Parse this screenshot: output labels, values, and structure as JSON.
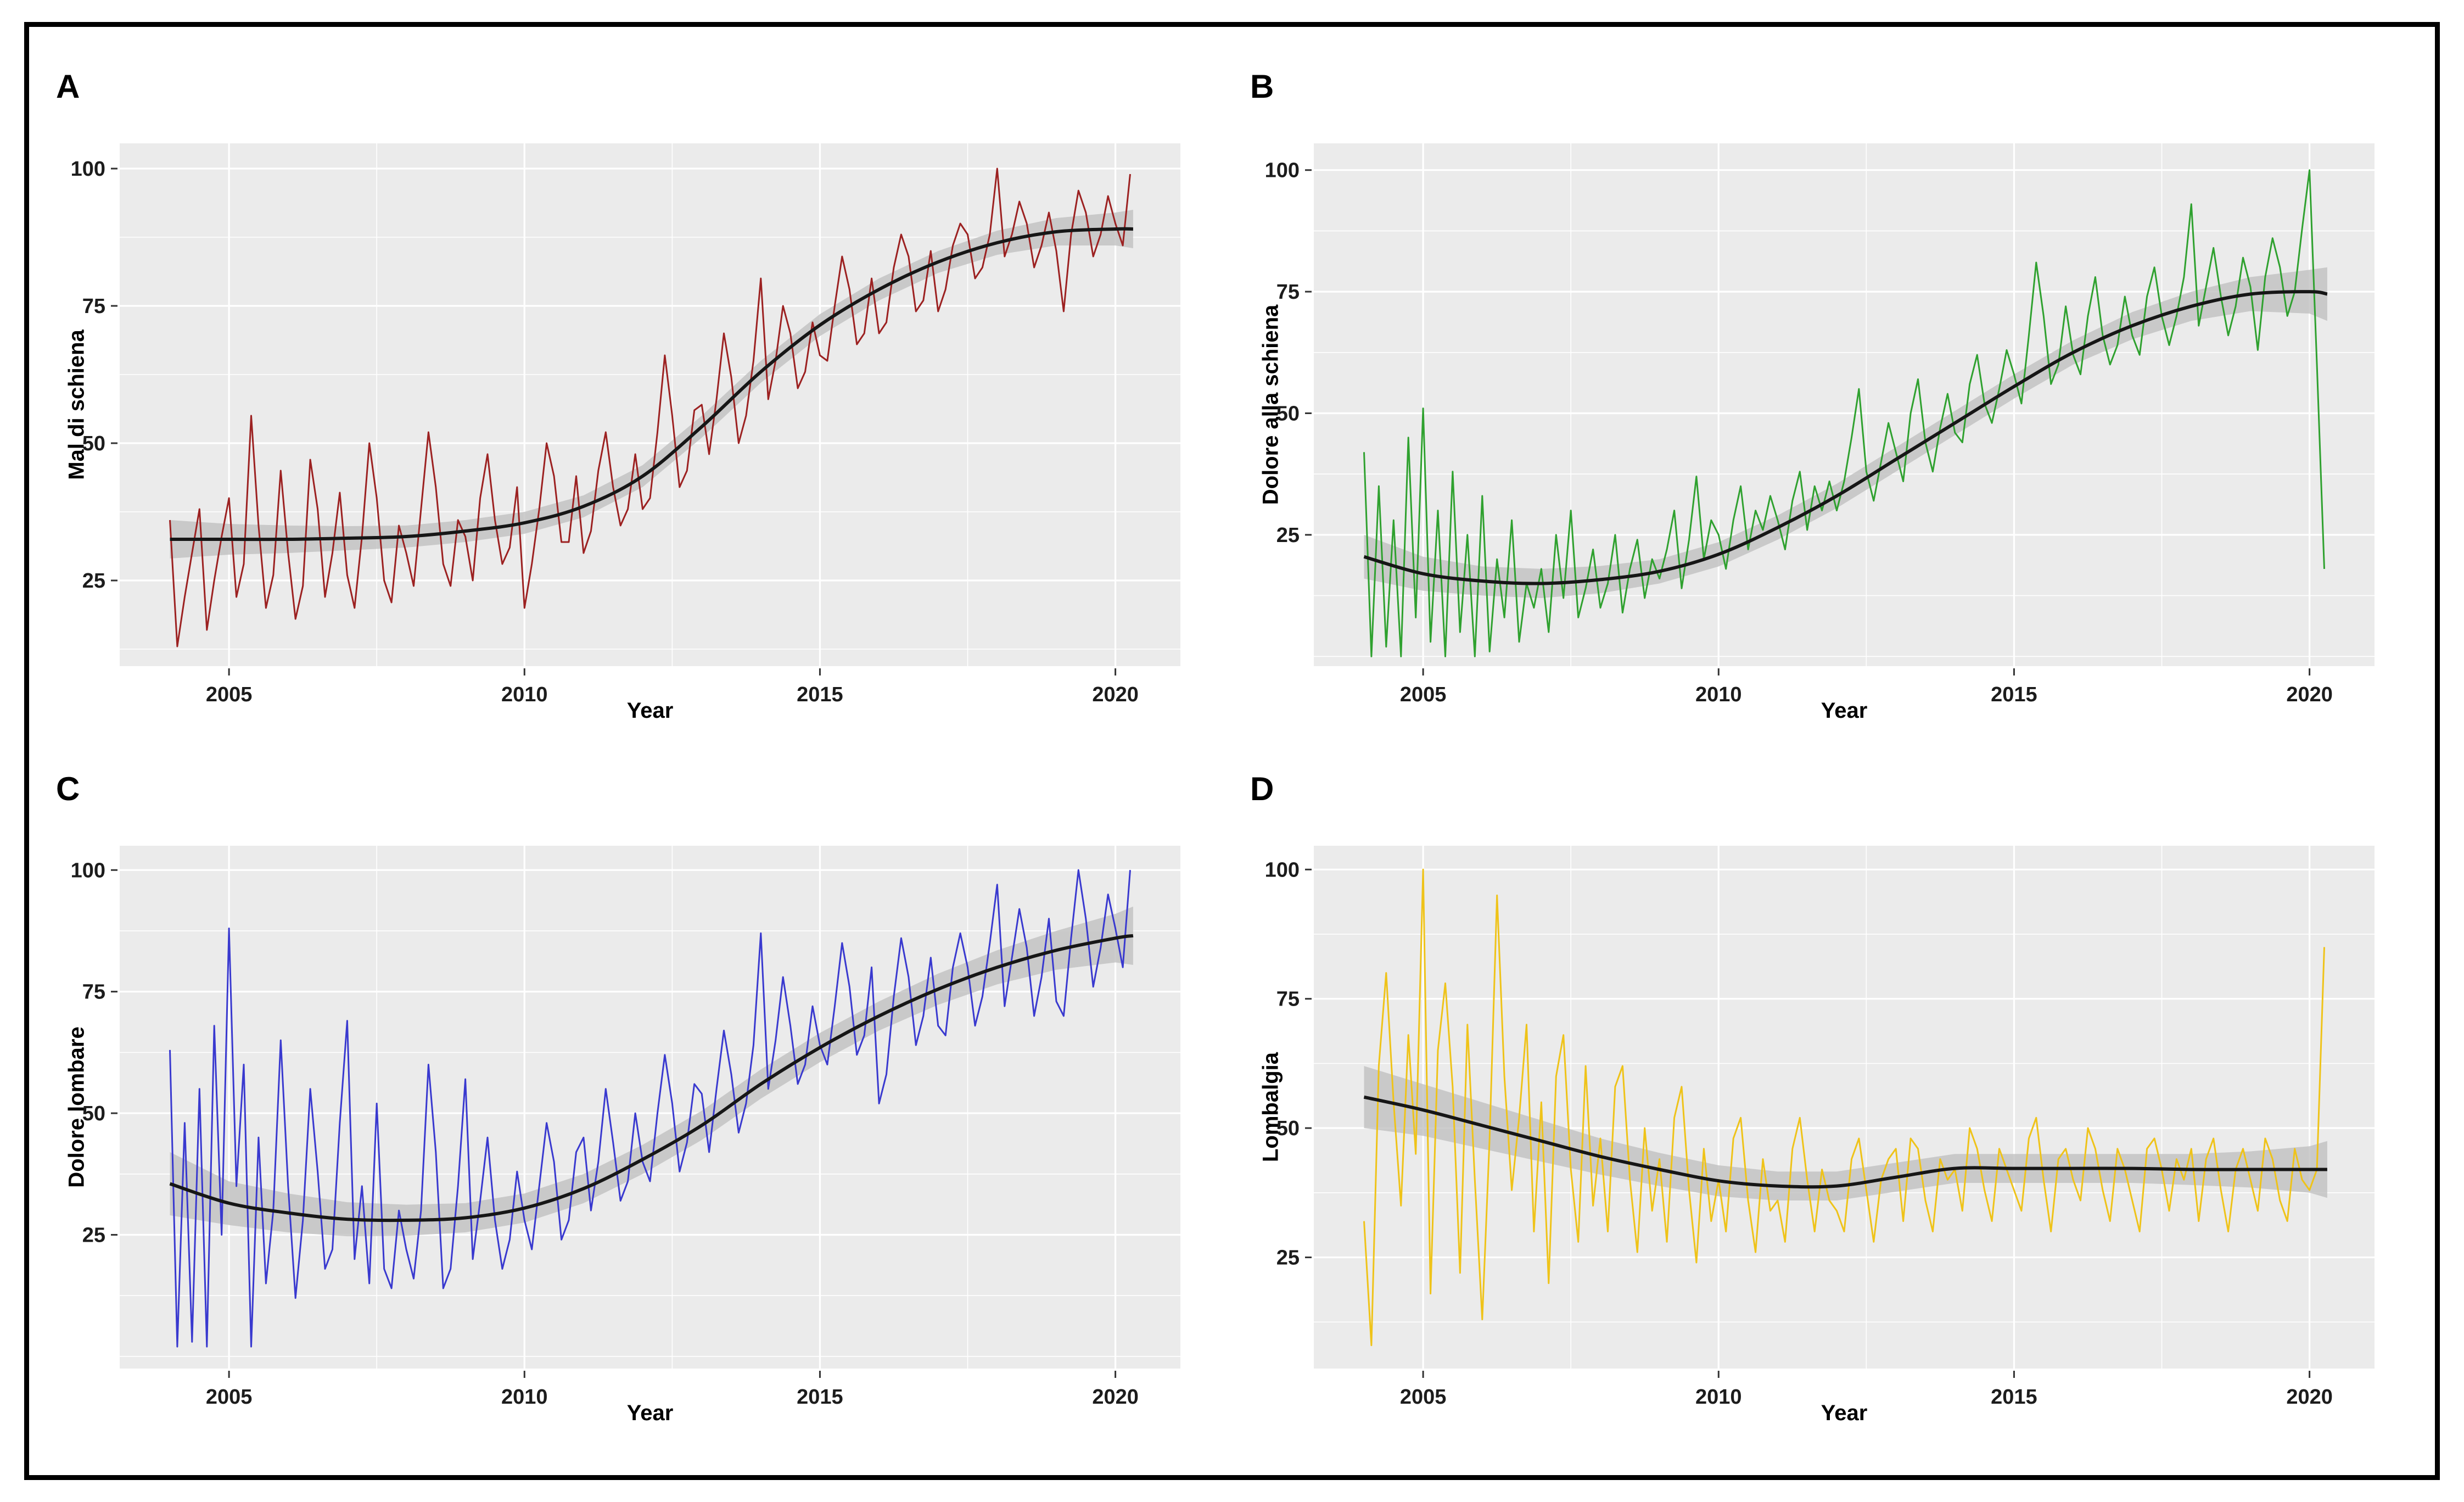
{
  "figure": {
    "frame_color": "#000000",
    "panel_background": "#EBEBEB",
    "grid_color": "#FFFFFF",
    "trend_color": "#161616",
    "ci_color": "#C0C0C0"
  },
  "chart_data": [
    {
      "type": "line",
      "panel_letter": "A",
      "ylabel": "Mal di schiena",
      "xlabel": "Year",
      "line_color": "#9C2121",
      "trend_color": "#161616",
      "ci_color": "#C0C0C0",
      "bg": "#EBEBEB",
      "grid": "#FFFFFF",
      "x_ticks": [
        2005,
        2010,
        2015,
        2020
      ],
      "y_ticks": [
        100,
        75,
        50,
        25
      ],
      "x_minor": [
        2007.5,
        2012.5,
        2017.5
      ],
      "y_minor": [
        0,
        12.5,
        37.5,
        62.5,
        87.5
      ],
      "xlim": [
        2003.15,
        2021.1
      ],
      "ylim": [
        9.4,
        104.6
      ],
      "x_start": 2004.0,
      "x_step": 0.125,
      "values": [
        36,
        13,
        22,
        30,
        38,
        16,
        25,
        33,
        40,
        22,
        28,
        55,
        35,
        20,
        26,
        45,
        30,
        18,
        24,
        47,
        38,
        22,
        30,
        41,
        26,
        20,
        33,
        50,
        40,
        25,
        21,
        35,
        30,
        24,
        38,
        52,
        42,
        28,
        24,
        36,
        33,
        25,
        40,
        48,
        36,
        28,
        31,
        42,
        20,
        28,
        38,
        50,
        44,
        32,
        32,
        44,
        30,
        34,
        45,
        52,
        42,
        35,
        38,
        48,
        38,
        40,
        52,
        66,
        55,
        42,
        45,
        56,
        57,
        48,
        58,
        70,
        62,
        50,
        55,
        65,
        80,
        58,
        65,
        75,
        70,
        60,
        63,
        72,
        66,
        65,
        75,
        84,
        78,
        68,
        70,
        80,
        70,
        72,
        82,
        88,
        84,
        74,
        76,
        85,
        74,
        78,
        86,
        90,
        88,
        80,
        82,
        88,
        100,
        84,
        88,
        94,
        90,
        82,
        86,
        92,
        85,
        74,
        88,
        96,
        92,
        84,
        88,
        95,
        90,
        86,
        99
      ],
      "trend_x": [
        2004,
        2005,
        2006,
        2007,
        2008,
        2009,
        2010,
        2011,
        2012,
        2013,
        2014,
        2015,
        2016,
        2017,
        2018,
        2019,
        2020,
        2020.3
      ],
      "trend": [
        32.5,
        32.5,
        32.5,
        32.7,
        33,
        34,
        35.5,
        38.5,
        44,
        53,
        63,
        71.5,
        78,
        83,
        86.5,
        88.5,
        89,
        89
      ],
      "ci": [
        3.5,
        2.8,
        2.5,
        2.2,
        2,
        2,
        2,
        2,
        2,
        2,
        2,
        2,
        2,
        2,
        2.2,
        2.5,
        3,
        3.5
      ]
    },
    {
      "type": "line",
      "panel_letter": "B",
      "ylabel": "Dolore alla schiena",
      "xlabel": "Year",
      "line_color": "#2FA12F",
      "trend_color": "#161616",
      "ci_color": "#C0C0C0",
      "bg": "#EBEBEB",
      "grid": "#FFFFFF",
      "x_ticks": [
        2005,
        2010,
        2015,
        2020
      ],
      "y_ticks": [
        100,
        75,
        50,
        25
      ],
      "x_minor": [
        2007.5,
        2012.5,
        2017.5
      ],
      "y_minor": [
        0,
        12.5,
        37.5,
        62.5,
        87.5
      ],
      "xlim": [
        2003.15,
        2021.1
      ],
      "ylim": [
        -2,
        105.5
      ],
      "x_start": 2004.0,
      "x_step": 0.125,
      "values": [
        42,
        0,
        35,
        2,
        28,
        0,
        45,
        8,
        51,
        3,
        30,
        0,
        38,
        5,
        25,
        0,
        33,
        1,
        20,
        8,
        28,
        3,
        15,
        10,
        18,
        5,
        25,
        12,
        30,
        8,
        14,
        22,
        10,
        15,
        25,
        9,
        18,
        24,
        12,
        20,
        16,
        22,
        30,
        14,
        24,
        37,
        20,
        28,
        25,
        18,
        28,
        35,
        22,
        30,
        26,
        33,
        28,
        22,
        32,
        38,
        26,
        35,
        30,
        36,
        30,
        36,
        45,
        55,
        38,
        32,
        40,
        48,
        42,
        36,
        50,
        57,
        44,
        38,
        47,
        54,
        46,
        44,
        56,
        62,
        52,
        48,
        55,
        63,
        58,
        52,
        66,
        81,
        70,
        56,
        60,
        72,
        62,
        58,
        70,
        78,
        66,
        60,
        64,
        74,
        66,
        62,
        74,
        80,
        70,
        64,
        70,
        78,
        93,
        68,
        76,
        84,
        74,
        66,
        72,
        82,
        76,
        63,
        78,
        86,
        80,
        70,
        75,
        88,
        100,
        60,
        18
      ],
      "trend_x": [
        2004,
        2005,
        2006,
        2007,
        2008,
        2009,
        2010,
        2011,
        2012,
        2013,
        2014,
        2015,
        2016,
        2017,
        2018,
        2019,
        2020,
        2020.3
      ],
      "trend": [
        20.5,
        17,
        15.5,
        15,
        15.8,
        17.5,
        21,
        26.5,
        33,
        40.5,
        48,
        55.5,
        62.5,
        68,
        72,
        74.5,
        75,
        74.5
      ],
      "ci": [
        4.5,
        3.5,
        3,
        3,
        2.8,
        2.5,
        2.5,
        2.5,
        2.5,
        2.5,
        2.5,
        2.5,
        2.5,
        2.8,
        3,
        3.5,
        4.5,
        5.5
      ]
    },
    {
      "type": "line",
      "panel_letter": "C",
      "ylabel": "Dolore lombare",
      "xlabel": "Year",
      "line_color": "#3939CF",
      "trend_color": "#161616",
      "ci_color": "#C0C0C0",
      "bg": "#EBEBEB",
      "grid": "#FFFFFF",
      "x_ticks": [
        2005,
        2010,
        2015,
        2020
      ],
      "y_ticks": [
        100,
        75,
        50,
        25
      ],
      "x_minor": [
        2007.5,
        2012.5,
        2017.5
      ],
      "y_minor": [
        0,
        12.5,
        37.5,
        62.5,
        87.5
      ],
      "xlim": [
        2003.15,
        2021.1
      ],
      "ylim": [
        -2.5,
        105
      ],
      "x_start": 2004.0,
      "x_step": 0.125,
      "values": [
        63,
        2,
        48,
        3,
        55,
        2,
        68,
        25,
        88,
        35,
        60,
        2,
        45,
        15,
        30,
        65,
        35,
        12,
        28,
        55,
        38,
        18,
        22,
        48,
        69,
        20,
        35,
        15,
        52,
        18,
        14,
        30,
        22,
        16,
        30,
        60,
        42,
        14,
        18,
        35,
        57,
        20,
        32,
        45,
        28,
        18,
        24,
        38,
        28,
        22,
        35,
        48,
        40,
        24,
        28,
        42,
        45,
        30,
        40,
        55,
        44,
        32,
        36,
        50,
        40,
        36,
        50,
        62,
        52,
        38,
        44,
        56,
        54,
        42,
        55,
        67,
        58,
        46,
        52,
        64,
        87,
        55,
        65,
        78,
        68,
        56,
        60,
        72,
        64,
        60,
        72,
        85,
        76,
        62,
        66,
        80,
        52,
        58,
        74,
        86,
        78,
        64,
        70,
        82,
        68,
        66,
        80,
        87,
        80,
        68,
        74,
        85,
        97,
        72,
        82,
        92,
        84,
        70,
        78,
        90,
        73,
        70,
        86,
        100,
        90,
        76,
        84,
        95,
        88,
        80,
        100
      ],
      "trend_x": [
        2004,
        2005,
        2006,
        2007,
        2008,
        2009,
        2010,
        2011,
        2012,
        2013,
        2014,
        2015,
        2016,
        2017,
        2018,
        2019,
        2020,
        2020.3
      ],
      "trend": [
        35.5,
        31.5,
        29.5,
        28.2,
        28,
        28.5,
        30.5,
        34.5,
        40.5,
        47.5,
        56,
        63.5,
        70,
        75.5,
        80,
        83.5,
        86,
        86.5
      ],
      "ci": [
        6.5,
        4.5,
        4,
        3.5,
        3.2,
        3,
        3,
        3,
        3,
        3,
        3,
        3,
        3,
        3.2,
        3.5,
        4,
        5,
        6
      ]
    },
    {
      "type": "line",
      "panel_letter": "D",
      "ylabel": "Lombalgia",
      "xlabel": "Year",
      "line_color": "#EFC319",
      "trend_color": "#161616",
      "ci_color": "#C0C0C0",
      "bg": "#EBEBEB",
      "grid": "#FFFFFF",
      "x_ticks": [
        2005,
        2010,
        2015,
        2020
      ],
      "y_ticks": [
        100,
        75,
        50,
        25
      ],
      "x_minor": [
        2007.5,
        2012.5,
        2017.5
      ],
      "y_minor": [
        0,
        12.5,
        37.5,
        62.5,
        87.5
      ],
      "xlim": [
        2003.15,
        2021.1
      ],
      "ylim": [
        3.5,
        104.6
      ],
      "x_start": 2004.0,
      "x_step": 0.125,
      "values": [
        32,
        8,
        62,
        80,
        55,
        35,
        68,
        45,
        100,
        18,
        65,
        78,
        58,
        22,
        70,
        40,
        13,
        48,
        95,
        60,
        38,
        52,
        70,
        30,
        55,
        20,
        60,
        68,
        42,
        28,
        62,
        35,
        48,
        30,
        58,
        62,
        40,
        26,
        50,
        34,
        44,
        28,
        52,
        58,
        38,
        24,
        46,
        32,
        40,
        30,
        48,
        52,
        36,
        26,
        44,
        34,
        36,
        28,
        46,
        52,
        40,
        30,
        42,
        36,
        34,
        30,
        44,
        48,
        38,
        28,
        40,
        44,
        46,
        32,
        48,
        46,
        36,
        30,
        44,
        40,
        42,
        34,
        50,
        46,
        38,
        32,
        46,
        42,
        38,
        34,
        48,
        52,
        40,
        30,
        44,
        46,
        40,
        36,
        50,
        46,
        38,
        32,
        46,
        42,
        36,
        30,
        46,
        48,
        42,
        34,
        44,
        40,
        46,
        32,
        44,
        48,
        38,
        30,
        42,
        46,
        40,
        34,
        48,
        44,
        36,
        32,
        46,
        40,
        38,
        42,
        85
      ],
      "trend_x": [
        2004,
        2005,
        2006,
        2007,
        2008,
        2009,
        2010,
        2011,
        2012,
        2013,
        2014,
        2015,
        2016,
        2017,
        2018,
        2019,
        2020,
        2020.3
      ],
      "trend": [
        56,
        53.5,
        50.5,
        47.5,
        44.5,
        42,
        39.8,
        38.8,
        38.8,
        40.5,
        42.2,
        42.2,
        42.2,
        42.2,
        42,
        42,
        42,
        42
      ],
      "ci": [
        6,
        5,
        4.5,
        4,
        3.5,
        3.2,
        3,
        2.8,
        2.8,
        2.8,
        2.8,
        2.8,
        2.8,
        2.8,
        3,
        3.5,
        4.5,
        5.5
      ]
    }
  ]
}
